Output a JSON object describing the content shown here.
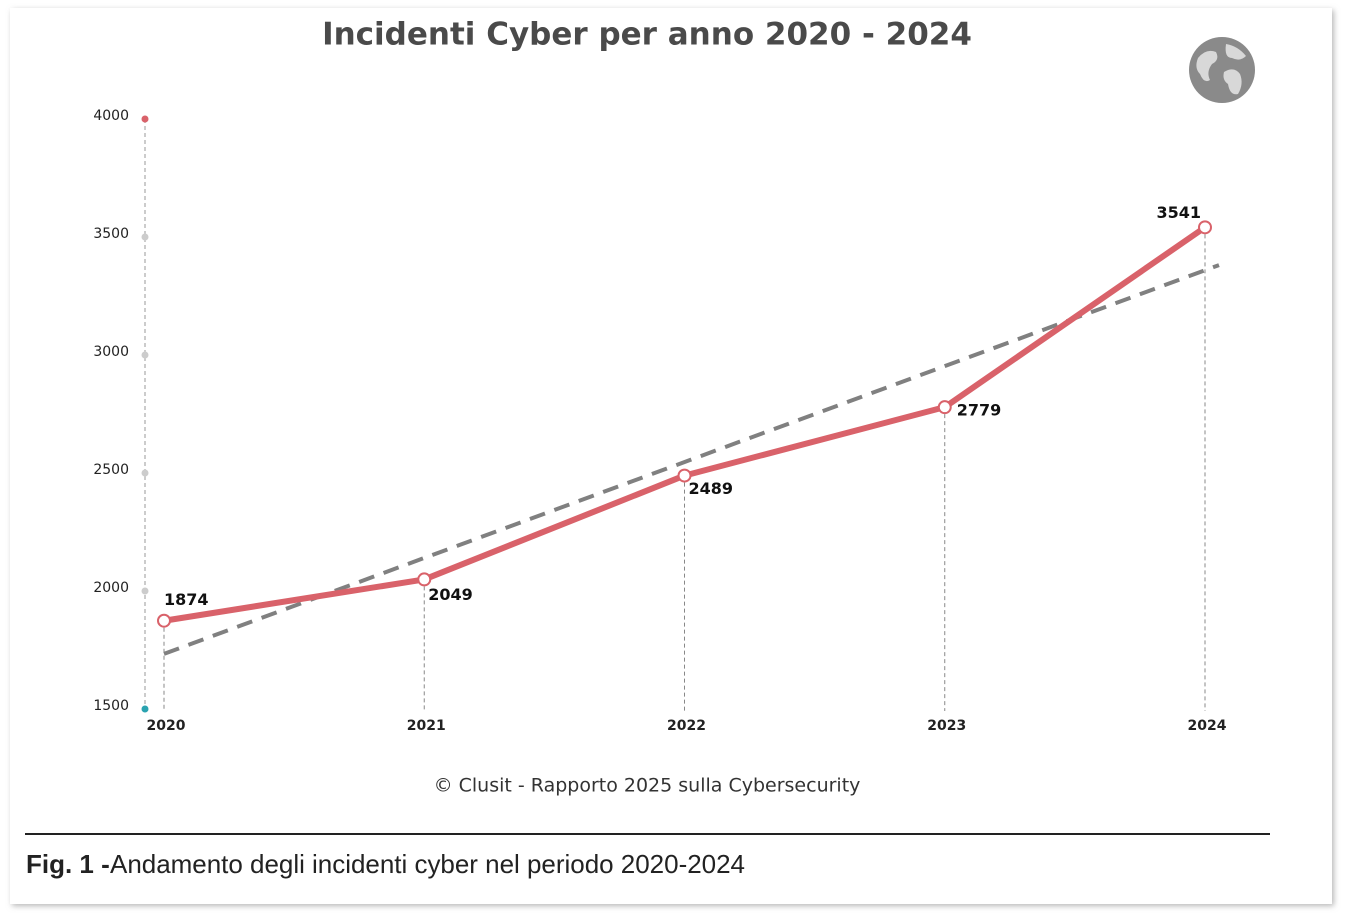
{
  "chart_data": {
    "type": "line",
    "title": "Incidenti Cyber per anno 2020 - 2024",
    "categories": [
      "2020",
      "2021",
      "2022",
      "2023",
      "2024"
    ],
    "values": [
      1874,
      2049,
      2489,
      2779,
      3541
    ],
    "color": "#d9626a",
    "trendline": true,
    "trend_color": "#808080",
    "ylim": [
      1500,
      4000
    ],
    "yticks": [
      1500,
      2000,
      2500,
      3000,
      3500,
      4000
    ],
    "source": "© Clusit - Rapporto 2025 sulla Cybersecurity",
    "caption_label": "Fig. 1 -",
    "caption_text": "Andamento degli incidenti cyber nel periodo 2020-2024"
  }
}
